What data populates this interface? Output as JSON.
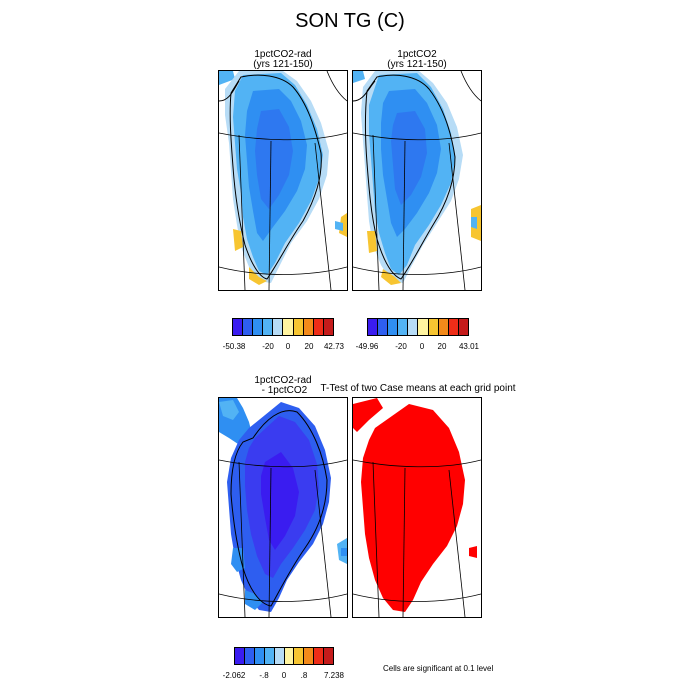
{
  "figure": {
    "title": "SON TG (C)",
    "footnote": "Cells are significant at 0.1 level"
  },
  "panels": {
    "p1": {
      "title": "1pctCO2-rad\n(yrs 121-150)"
    },
    "p2": {
      "title": "1pctCO2\n(yrs 121-150)"
    },
    "p3": {
      "title": "1pctCO2-rad\n - 1pctCO2"
    },
    "p4": {
      "title": "T-Test of two Case means at each grid point"
    }
  },
  "colorbars": {
    "cb1": {
      "ticks": [
        "-50.38",
        "-20",
        "0",
        "20",
        "42.73"
      ]
    },
    "cb2": {
      "ticks": [
        "-49.96",
        "-20",
        "0",
        "20",
        "43.01"
      ]
    },
    "cb3": {
      "ticks": [
        "-2.062",
        "-.8",
        "0",
        ".8",
        "7.238"
      ]
    }
  },
  "colors": {
    "palette": [
      "#3a1cf0",
      "#2e5ef0",
      "#2f8ff2",
      "#52b3f4",
      "#b7dcf6",
      "#fff4a0",
      "#f7c531",
      "#f38a1a",
      "#ee2d18",
      "#c51b1b"
    ],
    "significant": "#ff0000",
    "land_outline": "#000000"
  }
}
